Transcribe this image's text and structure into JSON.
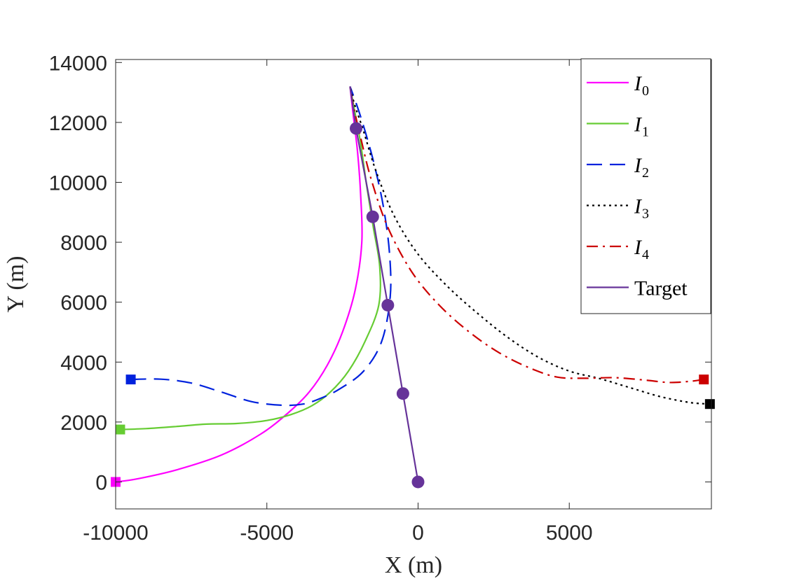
{
  "chart_data": {
    "type": "line",
    "title": "",
    "xlabel": "X (m)",
    "ylabel": "Y (m)",
    "xlim": [
      -10000,
      9700
    ],
    "ylim": [
      -900,
      14100
    ],
    "xticks": [
      -10000,
      -5000,
      0,
      5000
    ],
    "yticks": [
      0,
      2000,
      4000,
      6000,
      8000,
      10000,
      12000,
      14000
    ],
    "grid": false,
    "legend_position": "top-right",
    "series": [
      {
        "name": "I0",
        "label_main": "I",
        "label_sub": "0",
        "color": "#ff00ff",
        "dash": "solid",
        "start_marker": "square",
        "points": [
          [
            -10000,
            0
          ],
          [
            -9300,
            100
          ],
          [
            -8000,
            400
          ],
          [
            -6500,
            900
          ],
          [
            -5200,
            1600
          ],
          [
            -4300,
            2300
          ],
          [
            -3600,
            3000
          ],
          [
            -3000,
            3900
          ],
          [
            -2500,
            5000
          ],
          [
            -2080,
            6400
          ],
          [
            -1860,
            8000
          ],
          [
            -1900,
            9600
          ],
          [
            -2000,
            11000
          ],
          [
            -2150,
            12300
          ],
          [
            -2250,
            13200
          ]
        ]
      },
      {
        "name": "I1",
        "label_main": "I",
        "label_sub": "1",
        "color": "#66cc33",
        "dash": "solid",
        "start_marker": "square",
        "points": [
          [
            -9850,
            1750
          ],
          [
            -9000,
            1780
          ],
          [
            -8000,
            1850
          ],
          [
            -7000,
            1930
          ],
          [
            -6000,
            1950
          ],
          [
            -5000,
            2050
          ],
          [
            -4200,
            2250
          ],
          [
            -3500,
            2550
          ],
          [
            -2900,
            3000
          ],
          [
            -2300,
            3700
          ],
          [
            -1750,
            4700
          ],
          [
            -1300,
            5900
          ],
          [
            -1270,
            7200
          ],
          [
            -1480,
            8500
          ],
          [
            -1700,
            9900
          ],
          [
            -1900,
            11300
          ],
          [
            -2100,
            12400
          ],
          [
            -2250,
            13200
          ]
        ]
      },
      {
        "name": "I2",
        "label_main": "I",
        "label_sub": "2",
        "color": "#0022dd",
        "dash": "dashed",
        "start_marker": "square",
        "points": [
          [
            -9500,
            3420
          ],
          [
            -8500,
            3430
          ],
          [
            -7500,
            3300
          ],
          [
            -6500,
            3000
          ],
          [
            -5500,
            2680
          ],
          [
            -4500,
            2560
          ],
          [
            -3800,
            2600
          ],
          [
            -3200,
            2800
          ],
          [
            -2600,
            3100
          ],
          [
            -1800,
            3700
          ],
          [
            -1200,
            4700
          ],
          [
            -920,
            6200
          ],
          [
            -950,
            7700
          ],
          [
            -1150,
            9200
          ],
          [
            -1450,
            10600
          ],
          [
            -1750,
            11700
          ],
          [
            -2000,
            12500
          ],
          [
            -2250,
            13200
          ]
        ]
      },
      {
        "name": "I3",
        "label_main": "I",
        "label_sub": "3",
        "color": "#000000",
        "dash": "dotted",
        "start_marker": "square",
        "points": [
          [
            9650,
            2600
          ],
          [
            9000,
            2650
          ],
          [
            8000,
            2850
          ],
          [
            7000,
            3150
          ],
          [
            6000,
            3450
          ],
          [
            5000,
            3700
          ],
          [
            4000,
            4150
          ],
          [
            3000,
            4800
          ],
          [
            2000,
            5600
          ],
          [
            1000,
            6500
          ],
          [
            0,
            7600
          ],
          [
            -800,
            8900
          ],
          [
            -1400,
            10400
          ],
          [
            -1800,
            11700
          ],
          [
            -2100,
            12600
          ],
          [
            -2250,
            13200
          ]
        ]
      },
      {
        "name": "I4",
        "label_main": "I",
        "label_sub": "4",
        "color": "#cc0000",
        "dash": "dashdot",
        "start_marker": "square",
        "points": [
          [
            9450,
            3420
          ],
          [
            9000,
            3360
          ],
          [
            8300,
            3320
          ],
          [
            7500,
            3400
          ],
          [
            6500,
            3480
          ],
          [
            5500,
            3460
          ],
          [
            4600,
            3500
          ],
          [
            3700,
            3800
          ],
          [
            2700,
            4300
          ],
          [
            1700,
            5000
          ],
          [
            700,
            5900
          ],
          [
            -200,
            7000
          ],
          [
            -1000,
            8500
          ],
          [
            -1550,
            10100
          ],
          [
            -1900,
            11500
          ],
          [
            -2150,
            12600
          ],
          [
            -2250,
            13200
          ]
        ]
      },
      {
        "name": "Target",
        "label_main": "Target",
        "label_sub": "",
        "color": "#663399",
        "dash": "solid",
        "start_marker": "none",
        "points": [
          [
            0,
            0
          ],
          [
            -500,
            2950
          ],
          [
            -1000,
            5900
          ],
          [
            -1500,
            8850
          ],
          [
            -2050,
            11800
          ],
          [
            -2250,
            13200
          ]
        ],
        "circle_markers": [
          [
            0,
            0
          ],
          [
            -500,
            2950
          ],
          [
            -1000,
            5900
          ],
          [
            -1500,
            8850
          ],
          [
            -2050,
            11800
          ]
        ]
      }
    ]
  }
}
